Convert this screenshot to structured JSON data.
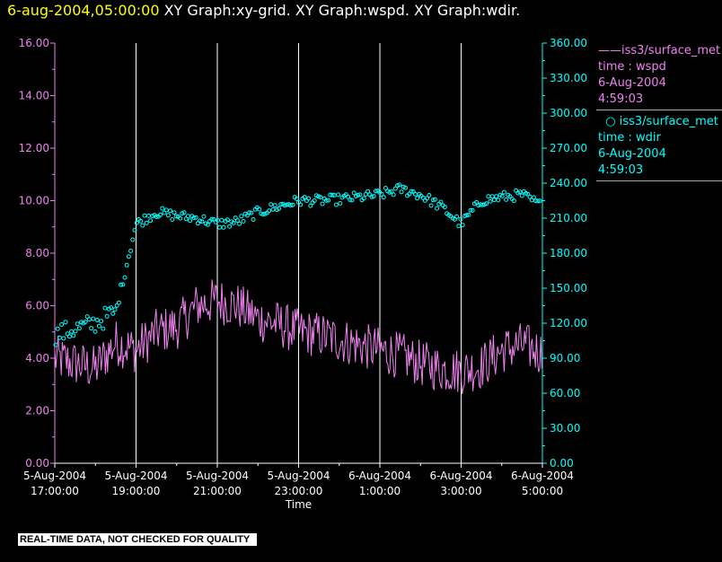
{
  "header": {
    "timestamp": "6-aug-2004,05:00:00",
    "graphs": "XY Graph:xy-grid.  XY Graph:wspd.  XY Graph:wdir."
  },
  "legend": {
    "wspd": {
      "source": "iss3/surface_met",
      "field": "time : wspd",
      "date": "6-Aug-2004",
      "time": "4:59:03"
    },
    "wdir": {
      "source": "iss3/surface_met",
      "field": "time : wdir",
      "date": "6-Aug-2004",
      "time": "4:59:03"
    }
  },
  "footer": {
    "text": "REAL-TIME DATA, NOT CHECKED FOR QUALITY"
  },
  "colors": {
    "wspd": "#ee82ee",
    "wdir": "#00ffff",
    "background": "#000000",
    "grid": "#ffffff",
    "timestamp": "#ffff00"
  },
  "chart_data": {
    "type": "line",
    "xlabel": "Time",
    "grid": "vertical lines at x tick labels",
    "x_ticks": [
      {
        "date": "5-Aug-2004",
        "time": "17:00:00"
      },
      {
        "date": "5-Aug-2004",
        "time": "19:00:00"
      },
      {
        "date": "5-Aug-2004",
        "time": "21:00:00"
      },
      {
        "date": "5-Aug-2004",
        "time": "23:00:00"
      },
      {
        "date": "6-Aug-2004",
        "time": "1:00:00"
      },
      {
        "date": "6-Aug-2004",
        "time": "3:00:00"
      },
      {
        "date": "6-Aug-2004",
        "time": "5:00:00"
      }
    ],
    "x_range": [
      "5-Aug-2004 17:00:00",
      "6-Aug-2004 5:00:00"
    ],
    "y_left": {
      "ylim": [
        0,
        16
      ],
      "ticks": [
        "0.00",
        "2.00",
        "4.00",
        "6.00",
        "8.00",
        "10.00",
        "12.00",
        "14.00",
        "16.00"
      ]
    },
    "y_right": {
      "ylim": [
        0,
        360
      ],
      "ticks": [
        "0.00",
        "30.00",
        "60.00",
        "90.00",
        "120.00",
        "150.00",
        "180.00",
        "210.00",
        "240.00",
        "270.00",
        "300.00",
        "330.00",
        "360.00"
      ]
    },
    "series": [
      {
        "name": "iss3/surface_met time : wspd",
        "axis": "left",
        "style": "line",
        "x": [
          "5-Aug-2004 17:00",
          "5-Aug-2004 17:30",
          "5-Aug-2004 18:00",
          "5-Aug-2004 18:30",
          "5-Aug-2004 19:00",
          "5-Aug-2004 19:30",
          "5-Aug-2004 20:00",
          "5-Aug-2004 20:30",
          "5-Aug-2004 21:00",
          "5-Aug-2004 21:30",
          "5-Aug-2004 22:00",
          "5-Aug-2004 22:30",
          "5-Aug-2004 23:00",
          "5-Aug-2004 23:30",
          "6-Aug-2004 0:00",
          "6-Aug-2004 0:30",
          "6-Aug-2004 1:00",
          "6-Aug-2004 1:30",
          "6-Aug-2004 2:00",
          "6-Aug-2004 2:30",
          "6-Aug-2004 3:00",
          "6-Aug-2004 3:30",
          "6-Aug-2004 4:00",
          "6-Aug-2004 4:30",
          "6-Aug-2004 5:00"
        ],
        "values": [
          4.0,
          3.8,
          3.6,
          4.6,
          4.3,
          5.0,
          5.2,
          6.0,
          6.2,
          6.0,
          5.5,
          5.3,
          5.0,
          4.9,
          4.7,
          4.5,
          4.3,
          4.1,
          3.8,
          3.6,
          3.5,
          3.7,
          4.3,
          4.5,
          4.2
        ]
      },
      {
        "name": "iss3/surface_met time : wdir",
        "axis": "right",
        "style": "scatter",
        "x": [
          "5-Aug-2004 17:00",
          "5-Aug-2004 17:30",
          "5-Aug-2004 18:00",
          "5-Aug-2004 18:30",
          "5-Aug-2004 19:00",
          "5-Aug-2004 19:30",
          "5-Aug-2004 20:00",
          "5-Aug-2004 20:30",
          "5-Aug-2004 21:00",
          "5-Aug-2004 21:30",
          "5-Aug-2004 22:00",
          "5-Aug-2004 22:30",
          "5-Aug-2004 23:00",
          "5-Aug-2004 23:30",
          "6-Aug-2004 0:00",
          "6-Aug-2004 0:30",
          "6-Aug-2004 1:00",
          "6-Aug-2004 1:30",
          "6-Aug-2004 2:00",
          "6-Aug-2004 2:30",
          "6-Aug-2004 3:00",
          "6-Aug-2004 3:30",
          "6-Aug-2004 4:00",
          "6-Aug-2004 4:30",
          "6-Aug-2004 5:00"
        ],
        "values": [
          110,
          115,
          120,
          130,
          205,
          215,
          212,
          210,
          205,
          207,
          215,
          220,
          225,
          225,
          226,
          228,
          230,
          235,
          230,
          220,
          205,
          225,
          228,
          230,
          220
        ]
      }
    ]
  }
}
